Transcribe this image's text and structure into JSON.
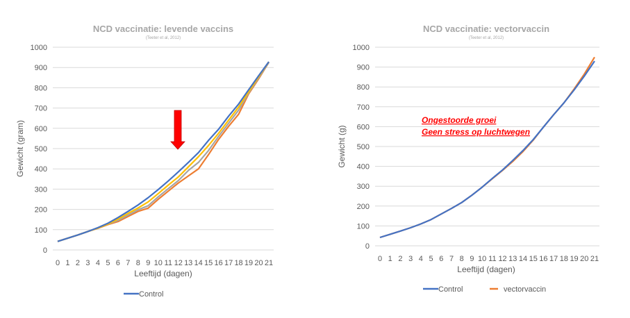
{
  "chart_data": [
    {
      "type": "line",
      "title": "NCD vaccinatie: levende vaccins",
      "subtitle": "(Teeter et al, 2012)",
      "xlabel": "Leeftijd (dagen)",
      "ylabel": "Gewicht (gram)",
      "ylim": [
        0,
        1000
      ],
      "yticks": [
        "0",
        "100",
        "200",
        "300",
        "400",
        "500",
        "600",
        "700",
        "800",
        "900",
        "1000"
      ],
      "x": [
        "0",
        "1",
        "2",
        "3",
        "4",
        "5",
        "6",
        "7",
        "8",
        "9",
        "10",
        "11",
        "12",
        "13",
        "14",
        "15",
        "16",
        "17",
        "18",
        "19",
        "20",
        "21"
      ],
      "grid": true,
      "legend": "bottom",
      "legend_entries": [
        "Control"
      ],
      "annotation": "red-down-arrow at day 12",
      "series": [
        {
          "name": "Control",
          "color": "#4472c4",
          "values": [
            42,
            58,
            74,
            91,
            110,
            132,
            160,
            190,
            222,
            258,
            298,
            340,
            385,
            432,
            480,
            540,
            595,
            660,
            720,
            790,
            860,
            928
          ]
        },
        {
          "name": "",
          "color": "#ffc000",
          "values": [
            42,
            58,
            74,
            91,
            108,
            128,
            152,
            180,
            207,
            237,
            278,
            320,
            360,
            410,
            460,
            515,
            575,
            640,
            705,
            780,
            855,
            928
          ]
        },
        {
          "name": "",
          "color": "#a5a5a5",
          "values": [
            42,
            58,
            74,
            91,
            108,
            127,
            146,
            172,
            198,
            218,
            262,
            302,
            342,
            392,
            432,
            490,
            560,
            625,
            690,
            775,
            850,
            925
          ]
        },
        {
          "name": "",
          "color": "#ed7d31",
          "values": [
            42,
            58,
            74,
            91,
            107,
            125,
            140,
            165,
            190,
            206,
            250,
            290,
            330,
            365,
            400,
            470,
            545,
            610,
            670,
            770,
            845,
            925
          ]
        }
      ]
    },
    {
      "type": "line",
      "title": "NCD vaccinatie: vectorvaccin",
      "subtitle": "(Teeter et al, 2012)",
      "xlabel": "Leeftijd (dagen)",
      "ylabel": "Gewicht (g)",
      "ylim": [
        0,
        1000
      ],
      "yticks": [
        "0",
        "100",
        "200",
        "300",
        "400",
        "500",
        "600",
        "700",
        "800",
        "900",
        "1000"
      ],
      "x": [
        "0",
        "1",
        "2",
        "3",
        "4",
        "5",
        "6",
        "7",
        "8",
        "9",
        "10",
        "11",
        "12",
        "13",
        "14",
        "15",
        "16",
        "17",
        "18",
        "19",
        "20",
        "21"
      ],
      "grid": true,
      "legend": "bottom",
      "legend_entries": [
        "Control",
        "vectorvaccin"
      ],
      "annotations": [
        "Ongestoorde groei",
        "Geen stress op luchtwegen"
      ],
      "series": [
        {
          "name": "Control",
          "color": "#4472c4",
          "values": [
            42,
            58,
            74,
            91,
            110,
            132,
            160,
            188,
            218,
            255,
            295,
            340,
            382,
            430,
            480,
            535,
            598,
            660,
            720,
            785,
            855,
            930
          ]
        },
        {
          "name": "vectorvaccin",
          "color": "#ed7d31",
          "values": [
            42,
            58,
            74,
            91,
            110,
            132,
            160,
            188,
            218,
            255,
            295,
            338,
            380,
            425,
            475,
            532,
            598,
            660,
            720,
            790,
            865,
            950
          ]
        }
      ]
    }
  ]
}
